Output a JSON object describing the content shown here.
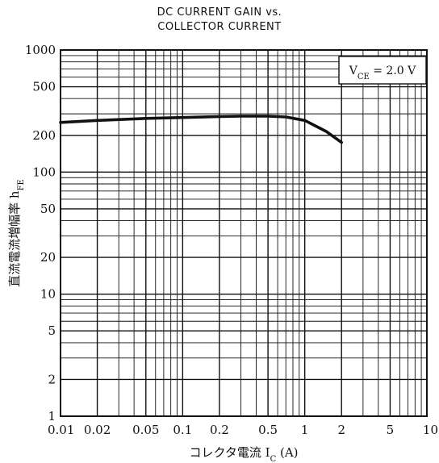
{
  "title_line1": "DC CURRENT GAIN vs.",
  "title_line2": "COLLECTOR CURRENT",
  "condition_label": "V_CE = 2.0 V",
  "chart_data": {
    "type": "line",
    "xscale": "log",
    "yscale": "log",
    "xlim": [
      0.01,
      10
    ],
    "ylim": [
      1,
      1000
    ],
    "x_tick_labels": [
      "0.01",
      "0.02",
      "0.05",
      "0.1",
      "0.2",
      "0.5",
      "1",
      "2",
      "5",
      "10"
    ],
    "x_tick_values": [
      0.01,
      0.02,
      0.05,
      0.1,
      0.2,
      0.5,
      1,
      2,
      5,
      10
    ],
    "y_tick_labels": [
      "1000",
      "500",
      "200",
      "100",
      "50",
      "20",
      "10",
      "5",
      "2",
      "1"
    ],
    "y_tick_values": [
      1000,
      500,
      200,
      100,
      50,
      20,
      10,
      5,
      2,
      1
    ],
    "xlabel": "コレクタ電流 I_C (A)",
    "ylabel": "直流電流増幅率 h_FE",
    "grid": true,
    "series": [
      {
        "x": [
          0.01,
          0.02,
          0.05,
          0.1,
          0.2,
          0.3,
          0.5,
          0.7,
          1.0,
          1.5,
          2.0
        ],
        "y": [
          255,
          265,
          275,
          280,
          285,
          287,
          287,
          283,
          265,
          215,
          175
        ]
      }
    ]
  }
}
